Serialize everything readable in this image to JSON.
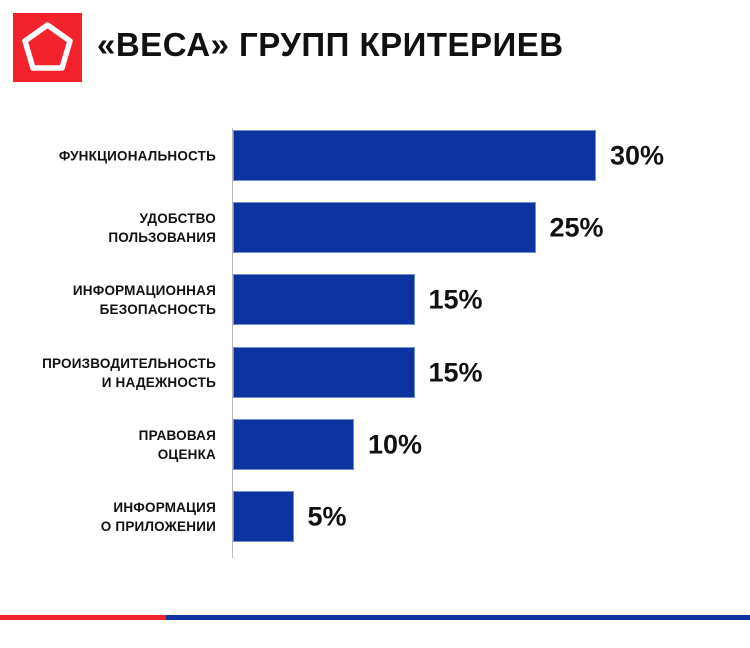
{
  "header": {
    "title": "«ВЕСА» ГРУПП КРИТЕРИЕВ",
    "logo_icon": "pentagon-logo-icon"
  },
  "colors": {
    "bar": "#0c33a0",
    "accent_red": "#f2232d",
    "text": "#111111"
  },
  "chart_data": {
    "type": "bar",
    "orientation": "horizontal",
    "title": "«ВЕСА» ГРУПП КРИТЕРИЕВ",
    "xlabel": "",
    "ylabel": "",
    "grid": false,
    "legend": null,
    "categories": [
      "ФУНКЦИОНАЛЬНОСТЬ",
      "УДОБСТВО ПОЛЬЗОВАНИЯ",
      "ИНФОРМАЦИОННАЯ БЕЗОПАСНОСТЬ",
      "ПРОИЗВОДИТЕЛЬНОСТЬ И НАДЕЖНОСТЬ",
      "ПРАВОВАЯ ОЦЕНКА",
      "ИНФОРМАЦИЯ О ПРИЛОЖЕНИИ"
    ],
    "values": [
      30,
      25,
      15,
      15,
      10,
      5
    ],
    "value_labels": [
      "30%",
      "25%",
      "15%",
      "15%",
      "10%",
      "5%"
    ],
    "unit": "%",
    "xlim": [
      0,
      30
    ]
  },
  "rows": [
    {
      "line1": "ФУНКЦИОНАЛЬНОСТЬ",
      "line2": "",
      "value": 30,
      "value_label": "30%"
    },
    {
      "line1": "УДОБСТВО",
      "line2": "ПОЛЬЗОВАНИЯ",
      "value": 25,
      "value_label": "25%"
    },
    {
      "line1": "ИНФОРМАЦИОННАЯ",
      "line2": "БЕЗОПАСНОСТЬ",
      "value": 15,
      "value_label": "15%"
    },
    {
      "line1": "ПРОИЗВОДИТЕЛЬНОСТЬ",
      "line2": "И НАДЕЖНОСТЬ",
      "value": 15,
      "value_label": "15%"
    },
    {
      "line1": "ПРАВОВАЯ",
      "line2": "ОЦЕНКА",
      "value": 10,
      "value_label": "10%"
    },
    {
      "line1": "ИНФОРМАЦИЯ",
      "line2": "О ПРИЛОЖЕНИИ",
      "value": 5,
      "value_label": "5%"
    }
  ]
}
